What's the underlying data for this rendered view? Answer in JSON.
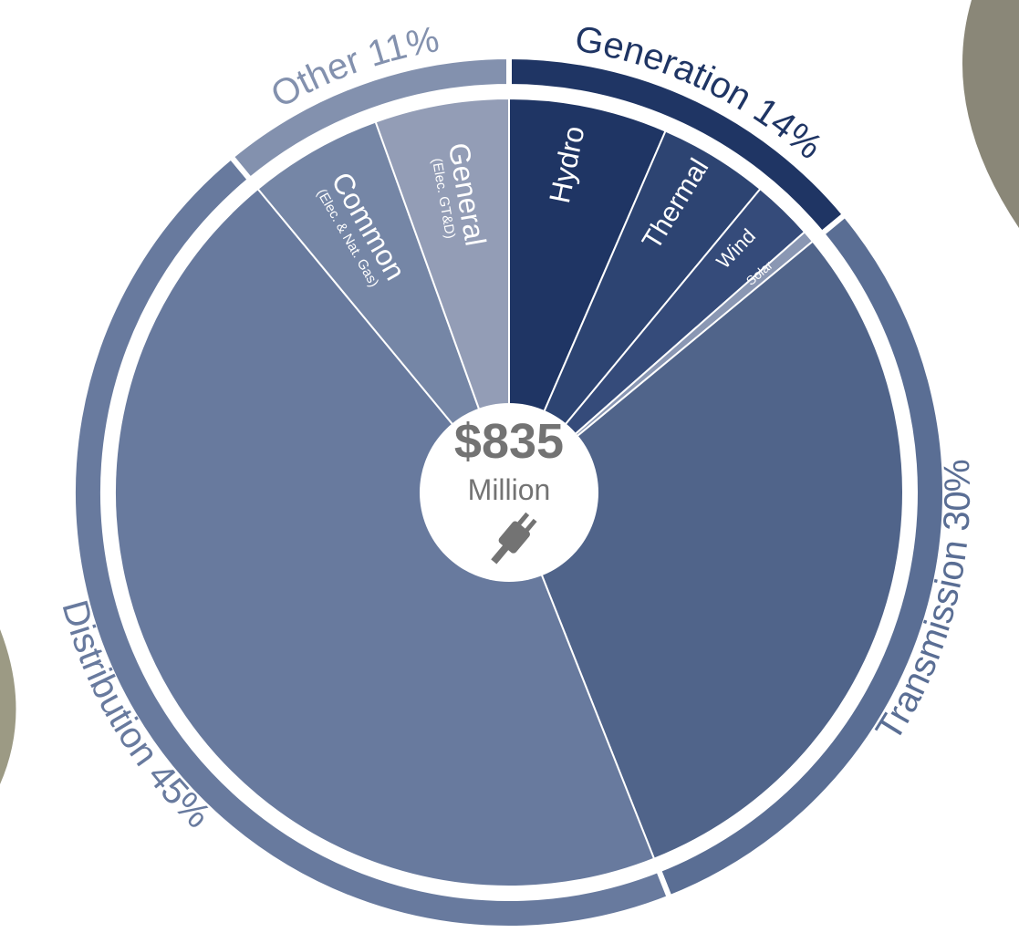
{
  "chart_data": {
    "type": "sunburst",
    "center_label": "$835",
    "center_unit": "Million",
    "outer": {
      "categories": [
        "Generation",
        "Transmission",
        "Distribution",
        "Other"
      ],
      "values": [
        14,
        30,
        45,
        11
      ],
      "value_labels": [
        "14%",
        "30%",
        "45%",
        "11%"
      ],
      "colors": [
        "#1f3564",
        "#5a6e94",
        "#687a9e",
        "#8391ae"
      ]
    },
    "inner": {
      "categories": [
        "Hydro",
        "Thermal",
        "Wind",
        "Solar",
        null,
        null,
        "Common",
        "General"
      ],
      "notes": [
        null,
        null,
        null,
        null,
        null,
        null,
        "(Elec. & Nat. Gas)",
        "(Elec. GT&D)"
      ],
      "values": [
        6.5,
        4.5,
        2.5,
        0.5,
        30,
        45,
        5.5,
        5.5
      ],
      "colors": [
        "#1f3564",
        "#2d4472",
        "#354b7a",
        "#8a97b3",
        "#50648a",
        "#687a9e",
        "#7586a6",
        "#939db6"
      ]
    }
  }
}
